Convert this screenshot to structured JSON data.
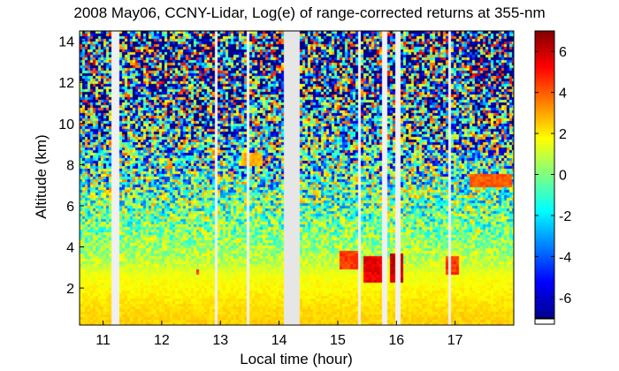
{
  "chart_data": {
    "type": "heatmap",
    "title": "2008 May06, CCNY-Lidar, Log(e) of range-corrected returns at 355-nm",
    "xlabel": "Local time (hour)",
    "ylabel": "Altitude (km)",
    "xlim": [
      10.6,
      18.0
    ],
    "ylim": [
      0.2,
      14.5
    ],
    "x_ticks": [
      11,
      12,
      13,
      14,
      15,
      16,
      17
    ],
    "y_ticks": [
      2,
      4,
      6,
      8,
      10,
      12,
      14
    ],
    "colorbar": {
      "range": [
        -7,
        7
      ],
      "ticks": [
        -6,
        -4,
        -2,
        0,
        2,
        4,
        6
      ],
      "colormap": "jet"
    },
    "data_gaps_hours": [
      [
        11.15,
        11.3
      ],
      [
        12.9,
        12.97
      ],
      [
        13.43,
        13.5
      ],
      [
        14.07,
        14.35
      ],
      [
        15.35,
        15.41
      ],
      [
        15.76,
        15.84
      ],
      [
        16.0,
        16.06
      ],
      [
        16.9,
        16.93
      ]
    ],
    "profile": {
      "altitude_km": [
        0.2,
        1,
        2,
        2.6,
        3,
        4,
        5,
        6,
        7,
        8,
        9,
        10,
        11,
        12,
        13,
        14.5
      ],
      "log_return": [
        2.4,
        2.2,
        1.8,
        1.6,
        1.1,
        0.4,
        -0.1,
        -0.4,
        -0.7,
        -1.2,
        -1.6,
        -2.0,
        -2.4,
        -2.7,
        -3.0,
        -3.4
      ]
    },
    "features": [
      {
        "t0": 12.1,
        "t1": 12.15,
        "a0": 7.7,
        "a1": 8.3,
        "v": 3.0
      },
      {
        "t0": 13.35,
        "t1": 13.7,
        "a0": 7.9,
        "a1": 8.6,
        "v": 2.8
      },
      {
        "t0": 17.25,
        "t1": 17.95,
        "a0": 6.9,
        "a1": 7.6,
        "v": 4.0
      },
      {
        "t0": 15.05,
        "t1": 15.35,
        "a0": 2.9,
        "a1": 3.8,
        "v": 4.5
      },
      {
        "t0": 15.45,
        "t1": 15.75,
        "a0": 2.2,
        "a1": 3.6,
        "v": 5.5
      },
      {
        "t0": 15.9,
        "t1": 16.12,
        "a0": 2.3,
        "a1": 3.7,
        "v": 6.0
      },
      {
        "t0": 16.85,
        "t1": 17.05,
        "a0": 2.7,
        "a1": 3.6,
        "v": 4.5
      },
      {
        "t0": 12.6,
        "t1": 12.65,
        "a0": 2.6,
        "a1": 2.9,
        "v": 4.5
      }
    ]
  }
}
